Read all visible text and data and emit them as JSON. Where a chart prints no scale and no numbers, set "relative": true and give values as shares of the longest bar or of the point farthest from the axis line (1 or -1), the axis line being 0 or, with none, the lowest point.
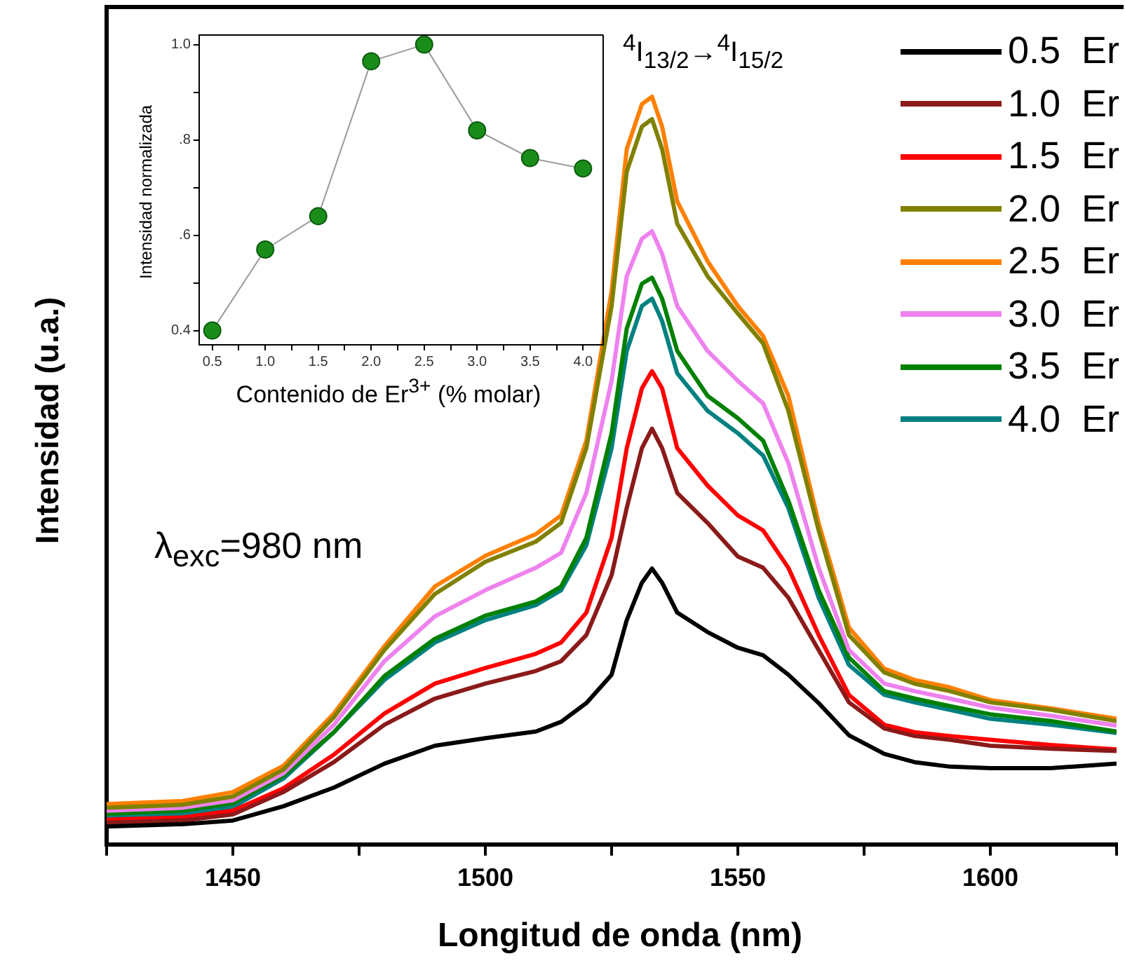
{
  "chart_data": [
    {
      "type": "line",
      "relative": true,
      "xlabel": "Longitud de onda (nm)",
      "ylabel": "Intensidad (u.a.)",
      "annotations": [
        "$^{4}$I$_{13/2}$→$^{4}$I$_{15/2}$",
        "λ$_{exc}$=980 nm"
      ],
      "legend": "top right",
      "xlim": [
        1425,
        1625
      ],
      "xticks": [
        {
          "value": 1425,
          "label": null
        },
        1450,
        {
          "value": 1475,
          "label": null
        },
        1500,
        {
          "value": 1525,
          "label": null
        },
        1550,
        {
          "value": 1575,
          "label": null
        },
        1600,
        {
          "value": 1625,
          "label": null
        }
      ],
      "x": [
        1425,
        1440,
        1450,
        1460,
        1470,
        1480,
        1490,
        1500,
        1510,
        1515,
        1520,
        1525,
        1528,
        1531,
        1533,
        1535,
        1538,
        1544,
        1550,
        1555,
        1560,
        1566,
        1572,
        1579,
        1585,
        1592,
        1600,
        1612,
        1625
      ],
      "series": [
        {
          "name": "0.5  Er",
          "color": "#000000",
          "values": [
            0.024,
            0.027,
            0.032,
            0.051,
            0.076,
            0.108,
            0.132,
            0.142,
            0.151,
            0.164,
            0.189,
            0.227,
            0.3,
            0.35,
            0.369,
            0.35,
            0.31,
            0.284,
            0.263,
            0.253,
            0.227,
            0.189,
            0.146,
            0.121,
            0.11,
            0.104,
            0.102,
            0.102,
            0.108
          ]
        },
        {
          "name": "1.0  Er",
          "color": "#8b1a1a",
          "values": [
            0.029,
            0.032,
            0.04,
            0.07,
            0.11,
            0.16,
            0.195,
            0.215,
            0.232,
            0.245,
            0.28,
            0.36,
            0.45,
            0.53,
            0.556,
            0.53,
            0.47,
            0.43,
            0.385,
            0.37,
            0.33,
            0.26,
            0.19,
            0.155,
            0.145,
            0.14,
            0.132,
            0.128,
            0.125
          ]
        },
        {
          "name": "1.5  Er",
          "color": "#ff0000",
          "values": [
            0.033,
            0.036,
            0.045,
            0.075,
            0.12,
            0.175,
            0.215,
            0.236,
            0.255,
            0.27,
            0.31,
            0.41,
            0.53,
            0.61,
            0.633,
            0.61,
            0.53,
            0.48,
            0.44,
            0.42,
            0.37,
            0.28,
            0.2,
            0.16,
            0.15,
            0.145,
            0.14,
            0.133,
            0.127
          ]
        },
        {
          "name": "2.0  Er",
          "color": "#808000",
          "values": [
            0.049,
            0.053,
            0.064,
            0.1,
            0.17,
            0.26,
            0.335,
            0.378,
            0.405,
            0.43,
            0.53,
            0.72,
            0.9,
            0.96,
            0.97,
            0.93,
            0.83,
            0.76,
            0.71,
            0.67,
            0.58,
            0.42,
            0.28,
            0.23,
            0.215,
            0.205,
            0.19,
            0.18,
            0.165
          ]
        },
        {
          "name": "2.5  Er",
          "color": "#ff8000",
          "values": [
            0.054,
            0.058,
            0.07,
            0.105,
            0.175,
            0.265,
            0.345,
            0.386,
            0.415,
            0.44,
            0.54,
            0.74,
            0.93,
            0.99,
            1.0,
            0.96,
            0.86,
            0.78,
            0.72,
            0.68,
            0.6,
            0.43,
            0.29,
            0.235,
            0.22,
            0.21,
            0.193,
            0.182,
            0.168
          ]
        },
        {
          "name": "3.0  Er",
          "color": "#ee82ee",
          "values": [
            0.045,
            0.049,
            0.059,
            0.095,
            0.16,
            0.245,
            0.305,
            0.34,
            0.37,
            0.39,
            0.47,
            0.62,
            0.76,
            0.81,
            0.82,
            0.79,
            0.72,
            0.66,
            0.62,
            0.59,
            0.51,
            0.37,
            0.26,
            0.215,
            0.205,
            0.195,
            0.183,
            0.172,
            0.159
          ]
        },
        {
          "name": "3.5  Er",
          "color": "#008000",
          "values": [
            0.041,
            0.045,
            0.055,
            0.092,
            0.15,
            0.225,
            0.275,
            0.306,
            0.325,
            0.345,
            0.41,
            0.55,
            0.69,
            0.75,
            0.758,
            0.73,
            0.66,
            0.6,
            0.57,
            0.54,
            0.46,
            0.34,
            0.25,
            0.205,
            0.195,
            0.185,
            0.174,
            0.165,
            0.151
          ]
        },
        {
          "name": "4.0  Er",
          "color": "#008080",
          "values": [
            0.037,
            0.041,
            0.05,
            0.088,
            0.15,
            0.22,
            0.27,
            0.3,
            0.32,
            0.34,
            0.4,
            0.53,
            0.66,
            0.72,
            0.73,
            0.7,
            0.63,
            0.58,
            0.55,
            0.52,
            0.45,
            0.33,
            0.24,
            0.2,
            0.19,
            0.18,
            0.168,
            0.16,
            0.149
          ]
        }
      ]
    },
    {
      "type": "line",
      "marker": "circle",
      "xlabel": "Contenido de Er$^{3+}$ (% molar)",
      "ylabel": "Intensidad normalizada",
      "xlim": [
        0.375,
        4.19
      ],
      "xticks": [
        {
          "value": 0.5,
          "label": "0.5"
        },
        {
          "value": 0.75,
          "label": null
        },
        {
          "value": 1,
          "label": "1.0"
        },
        {
          "value": 1.25,
          "label": null
        },
        {
          "value": 1.5,
          "label": "1.5"
        },
        {
          "value": 1.75,
          "label": null
        },
        {
          "value": 2,
          "label": "2.0"
        },
        {
          "value": 2.25,
          "label": null
        },
        {
          "value": 2.5,
          "label": "2.5"
        },
        {
          "value": 2.75,
          "label": null
        },
        {
          "value": 3,
          "label": "3.0"
        },
        {
          "value": 3.25,
          "label": null
        },
        {
          "value": 3.5,
          "label": "3.5"
        },
        {
          "value": 3.75,
          "label": null
        },
        {
          "value": 4,
          "label": "4.0"
        }
      ],
      "ylim": [
        0.37,
        1.02
      ],
      "yticks": [
        0.4,
        {
          "value": 0.5,
          "label": null
        },
        {
          "value": 0.6,
          "label": ".6"
        },
        {
          "value": 0.7,
          "label": null
        },
        {
          "value": 0.8,
          "label": ".8"
        },
        {
          "value": 0.9,
          "label": null
        },
        {
          "value": 1,
          "label": "1.0"
        }
      ],
      "x": [
        0.5,
        1,
        1.5,
        2,
        2.5,
        3,
        3.5,
        4
      ],
      "series": [
        {
          "color": "#1a8c1a",
          "values": [
            0.4,
            0.57,
            0.64,
            0.965,
            1.0,
            0.82,
            0.762,
            0.74
          ]
        }
      ]
    }
  ]
}
